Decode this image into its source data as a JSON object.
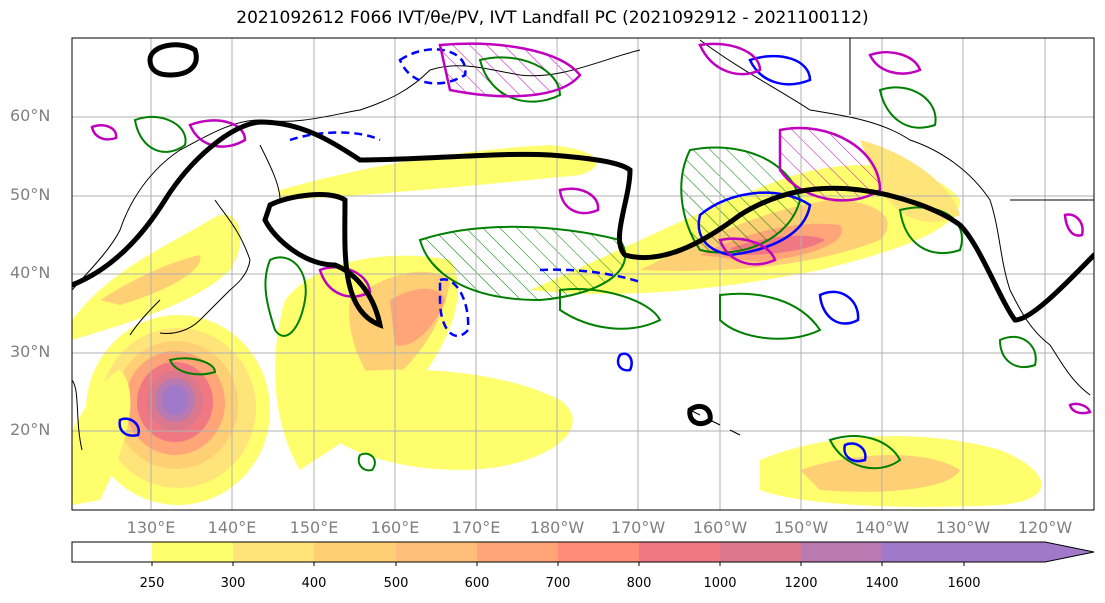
{
  "title_text": "2021092612 F066 IVT/θe/PV, IVT Landfall PC (2021092912 - 2021100112)",
  "lat_labels": [
    "60°N",
    "50°N",
    "40°N",
    "30°N",
    "20°N"
  ],
  "lon_labels": [
    "130°E",
    "140°E",
    "150°E",
    "160°E",
    "170°E",
    "180°W",
    "170°W",
    "160°W",
    "150°W",
    "140°W",
    "130°W",
    "120°W"
  ],
  "colorbar": {
    "ticks": [
      "250",
      "300",
      "400",
      "500",
      "600",
      "700",
      "800",
      "1000",
      "1200",
      "1400",
      "1600"
    ],
    "colors": [
      "#ffffff",
      "#ffff6e",
      "#ffe47a",
      "#ffcf76",
      "#ffbe78",
      "#ffa578",
      "#ff8c78",
      "#f07882",
      "#dc788e",
      "#b87ab0",
      "#a07ac8"
    ]
  },
  "legend_semantics": {
    "shading": "IVT",
    "contour_colors": {
      "black": "#000000",
      "green": "#007f00",
      "blue": "#0000ff",
      "magenta": "#bf00bf"
    }
  }
}
